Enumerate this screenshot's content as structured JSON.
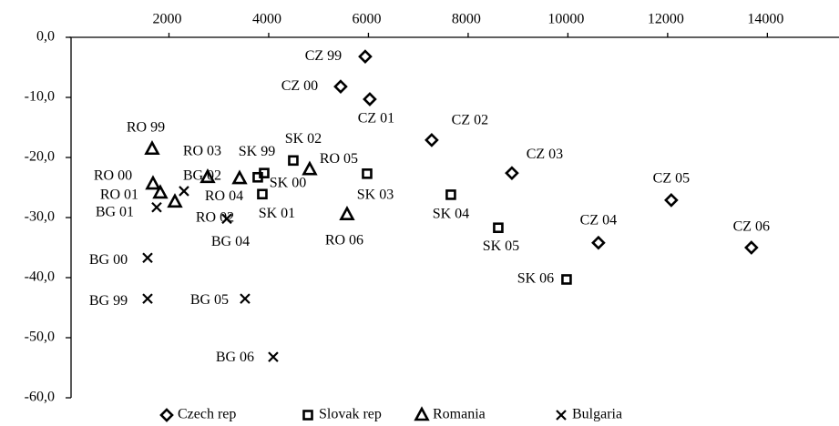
{
  "chart_data": {
    "type": "scatter",
    "xlim": [
      0,
      15400
    ],
    "ylim": [
      -60,
      0
    ],
    "xticks": [
      2000,
      4000,
      6000,
      8000,
      10000,
      12000,
      14000
    ],
    "yticks": [
      {
        "value": 0,
        "label": "0,0"
      },
      {
        "value": -10,
        "label": "-10,0"
      },
      {
        "value": -20,
        "label": "-20,0"
      },
      {
        "value": -30,
        "label": "-30,0"
      },
      {
        "value": -40,
        "label": "-40,0"
      },
      {
        "value": -50,
        "label": "-50,0"
      },
      {
        "value": -60,
        "label": "-60,0"
      }
    ],
    "legend": "bottom",
    "series": [
      {
        "name": "Czech rep",
        "marker": "diamond",
        "color": "#000000",
        "labels": [
          "CZ 99",
          "CZ 00",
          "CZ 01",
          "CZ 02",
          "CZ 03",
          "CZ 04",
          "CZ 05",
          "CZ 06"
        ],
        "x": [
          5936,
          5443,
          6027,
          7269,
          8877,
          10612,
          12073,
          13680
        ],
        "values": [
          -3.2,
          -8.2,
          -10.3,
          -17.1,
          -22.6,
          -34.2,
          -27.1,
          -35.0
        ]
      },
      {
        "name": "Slovak rep",
        "marker": "square",
        "color": "#000000",
        "labels": [
          "SK 99",
          "SK 00",
          "SK 01",
          "SK 02",
          "SK 03",
          "SK 04",
          "SK 05",
          "SK 06"
        ],
        "x": [
          3909,
          3781,
          3872,
          4493,
          5973,
          7653,
          8603,
          9973
        ],
        "values": [
          -22.6,
          -23.3,
          -26.1,
          -20.5,
          -22.7,
          -26.2,
          -31.7,
          -40.3
        ]
      },
      {
        "name": "Romania",
        "marker": "triangle",
        "color": "#000000",
        "labels": [
          "RO 99",
          "RO 00",
          "RO 01",
          "RO 02",
          "RO 03",
          "RO 04",
          "RO 05",
          "RO 06"
        ],
        "x": [
          1662,
          1680,
          1826,
          2119,
          2776,
          3416,
          4822,
          5571
        ],
        "values": [
          -18.6,
          -24.4,
          -25.9,
          -27.4,
          -23.3,
          -23.5,
          -22.0,
          -29.5
        ]
      },
      {
        "name": "Bulgaria",
        "marker": "x",
        "color": "#000000",
        "labels": [
          "BG 99",
          "BG 00",
          "BG 01",
          "BG 02",
          "BG 04",
          "BG 05",
          "BG 06"
        ],
        "x": [
          1571,
          1571,
          1753,
          2301,
          3160,
          3525,
          4091
        ],
        "values": [
          -43.5,
          -36.7,
          -28.3,
          -25.6,
          -30.2,
          -43.5,
          -53.2
        ]
      }
    ]
  }
}
